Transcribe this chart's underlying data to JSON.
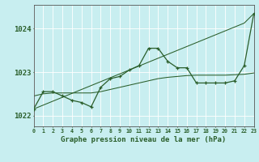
{
  "title": "Graphe pression niveau de la mer (hPa)",
  "xlabel_hours": [
    0,
    1,
    2,
    3,
    4,
    5,
    6,
    7,
    8,
    9,
    10,
    11,
    12,
    13,
    14,
    15,
    16,
    17,
    18,
    19,
    20,
    21,
    22,
    23
  ],
  "ylim": [
    1021.75,
    1024.55
  ],
  "yticks": [
    1022,
    1023,
    1024
  ],
  "bg_color": "#c8eef0",
  "grid_color": "#ffffff",
  "line_color": "#2a5e2a",
  "series_main": [
    1022.15,
    1022.55,
    1022.55,
    1022.45,
    1022.35,
    1022.3,
    1022.2,
    1022.65,
    1022.85,
    1022.9,
    1023.05,
    1023.15,
    1023.55,
    1023.55,
    1023.25,
    1023.1,
    1023.1,
    1022.75,
    1022.75,
    1022.75,
    1022.75,
    1022.8,
    1023.15,
    1024.35
  ],
  "series_linear": [
    1022.15,
    1022.24,
    1022.33,
    1022.42,
    1022.51,
    1022.6,
    1022.69,
    1022.78,
    1022.87,
    1022.96,
    1023.05,
    1023.14,
    1023.23,
    1023.32,
    1023.41,
    1023.5,
    1023.59,
    1023.68,
    1023.77,
    1023.86,
    1023.95,
    1024.04,
    1024.13,
    1024.35
  ],
  "series_smooth": [
    1022.45,
    1022.5,
    1022.52,
    1022.52,
    1022.52,
    1022.52,
    1022.52,
    1022.55,
    1022.6,
    1022.65,
    1022.7,
    1022.75,
    1022.8,
    1022.85,
    1022.88,
    1022.9,
    1022.92,
    1022.93,
    1022.93,
    1022.93,
    1022.93,
    1022.94,
    1022.95,
    1022.98
  ]
}
